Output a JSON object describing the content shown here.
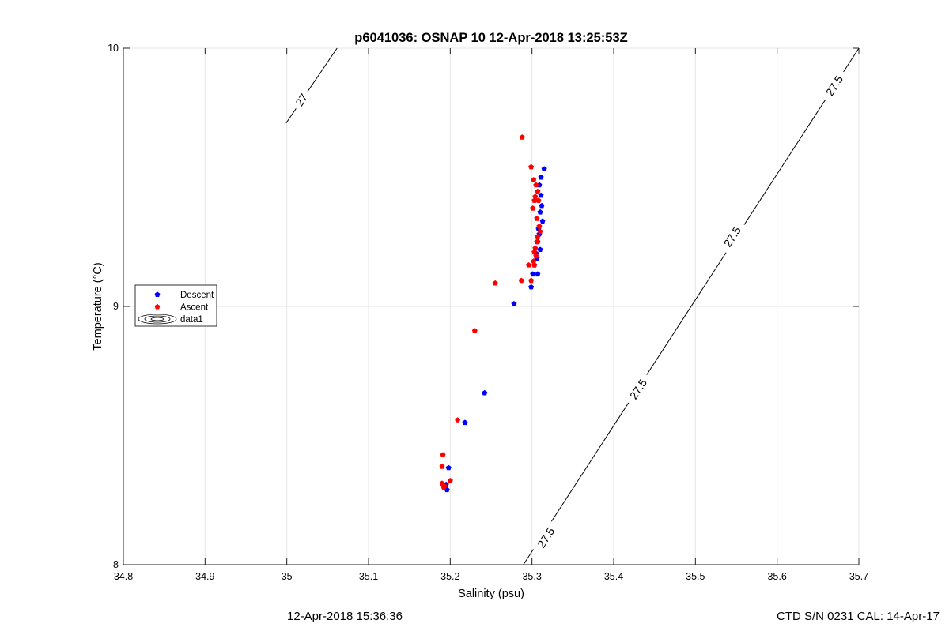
{
  "chart_data": {
    "type": "scatter",
    "title": "p6041036: OSNAP 10 12-Apr-2018 13:25:53Z",
    "xlabel": "Salinity (psu)",
    "ylabel": "Temperature (°C)",
    "xlim": [
      34.8,
      35.7
    ],
    "ylim": [
      8,
      10
    ],
    "xticks": [
      34.8,
      34.9,
      35,
      35.1,
      35.2,
      35.3,
      35.4,
      35.5,
      35.6,
      35.7
    ],
    "xtick_labels": [
      "34.8",
      "34.9",
      "35",
      "35.1",
      "35.2",
      "35.3",
      "35.4",
      "35.5",
      "35.6",
      "35.7"
    ],
    "yticks": [
      8,
      9,
      10
    ],
    "ytick_labels": [
      "8",
      "9",
      "10"
    ],
    "grid": true,
    "legend_position": "middle-left",
    "series": [
      {
        "name": "Descent",
        "color": "#0000ff",
        "x": [
          35.315,
          35.311,
          35.309,
          35.311,
          35.312,
          35.31,
          35.313,
          35.308,
          35.309,
          35.307,
          35.31,
          35.305,
          35.306,
          35.303,
          35.299,
          35.307,
          35.301,
          35.278,
          35.242,
          35.218,
          35.198,
          35.195,
          35.196,
          35.193
        ],
        "y": [
          9.532,
          9.5,
          9.47,
          9.43,
          9.39,
          9.365,
          9.33,
          9.3,
          9.28,
          9.25,
          9.22,
          9.205,
          9.185,
          9.16,
          9.075,
          9.125,
          9.125,
          9.01,
          8.665,
          8.55,
          8.375,
          8.31,
          8.29,
          8.3
        ]
      },
      {
        "name": "Ascent",
        "color": "#ff0000",
        "x": [
          35.288,
          35.299,
          35.302,
          35.305,
          35.307,
          35.304,
          35.308,
          35.303,
          35.301,
          35.306,
          35.309,
          35.31,
          35.307,
          35.306,
          35.304,
          35.303,
          35.305,
          35.302,
          35.303,
          35.296,
          35.299,
          35.287,
          35.255,
          35.23,
          35.209,
          35.191,
          35.19,
          35.2,
          35.19,
          35.193,
          35.192
        ],
        "y": [
          9.655,
          9.54,
          9.49,
          9.47,
          9.445,
          9.425,
          9.41,
          9.41,
          9.38,
          9.34,
          9.31,
          9.29,
          9.27,
          9.25,
          9.225,
          9.21,
          9.195,
          9.175,
          9.16,
          9.16,
          9.1,
          9.1,
          9.09,
          8.905,
          8.56,
          8.425,
          8.38,
          8.325,
          8.315,
          8.305,
          8.3
        ]
      }
    ],
    "legend": {
      "entries": [
        {
          "label": "Descent",
          "color": "#0000ff",
          "symbol": "marker"
        },
        {
          "label": "Ascent",
          "color": "#ff0000",
          "symbol": "marker"
        },
        {
          "label": "data1",
          "color": "#000000",
          "symbol": "contour"
        }
      ]
    },
    "contours": [
      {
        "label": "27",
        "points": [
          [
            34.9992,
            9.71
          ],
          [
            35.0615,
            10.0
          ]
        ],
        "labels": [
          {
            "text": "27",
            "x": 35.018,
            "y": 9.8
          }
        ]
      },
      {
        "label": "27.5",
        "points": [
          [
            35.2895,
            8.0
          ],
          [
            35.7,
            10.0
          ]
        ],
        "labels": [
          {
            "text": "27.5",
            "x": 35.317,
            "y": 8.105
          },
          {
            "text": "27.5",
            "x": 35.43,
            "y": 8.68
          },
          {
            "text": "27.5",
            "x": 35.545,
            "y": 9.27
          },
          {
            "text": "27.5",
            "x": 35.67,
            "y": 9.855
          }
        ]
      }
    ]
  },
  "footer": {
    "left": "12-Apr-2018 15:36:36",
    "right": "CTD S/N 0231  CAL: 14-Apr-17"
  }
}
